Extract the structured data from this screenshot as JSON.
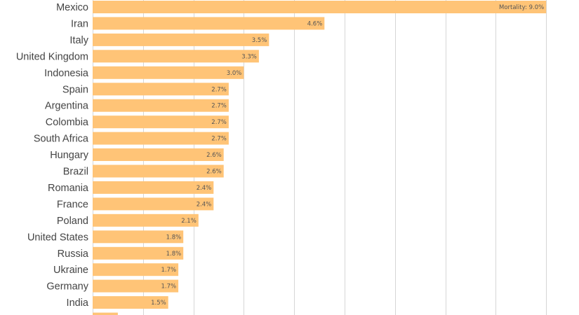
{
  "chart_data": {
    "type": "bar",
    "orientation": "horizontal",
    "categories": [
      "Mexico",
      "Iran",
      "Italy",
      "United Kingdom",
      "Indonesia",
      "Spain",
      "Argentina",
      "Colombia",
      "South Africa",
      "Hungary",
      "Brazil",
      "Romania",
      "France",
      "Poland",
      "United States",
      "Russia",
      "Ukraine",
      "Germany",
      "India",
      ""
    ],
    "values": [
      9.0,
      4.6,
      3.5,
      3.3,
      3.0,
      2.7,
      2.7,
      2.7,
      2.7,
      2.6,
      2.6,
      2.4,
      2.4,
      2.1,
      1.8,
      1.8,
      1.7,
      1.7,
      1.5,
      0.5
    ],
    "value_labels": [
      "Mortality: 9.0%",
      "4.6%",
      "3.5%",
      "3.3%",
      "3.0%",
      "2.7%",
      "2.7%",
      "2.7%",
      "2.7%",
      "2.6%",
      "2.6%",
      "2.4%",
      "2.4%",
      "2.1%",
      "1.8%",
      "1.8%",
      "1.7%",
      "1.7%",
      "1.5%",
      ""
    ],
    "xlim": [
      0,
      9.0
    ],
    "grid": true,
    "bar_color": "#ffc477",
    "grid_color": "#d6d6d6",
    "label_color": "#444444"
  }
}
